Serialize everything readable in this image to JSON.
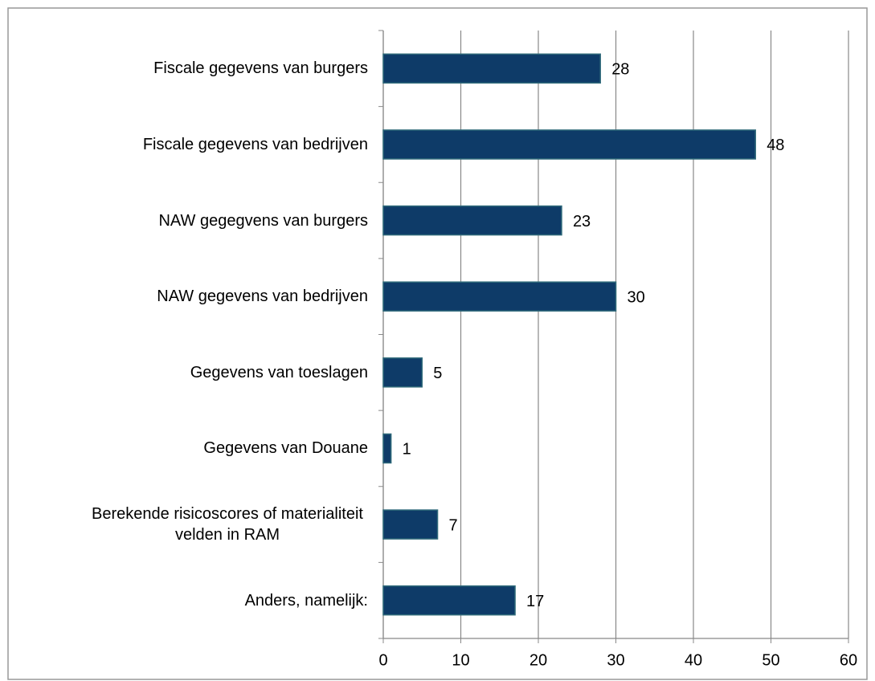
{
  "chart_data": {
    "type": "barh",
    "categories": [
      "Fiscale gegevens van burgers",
      "Fiscale gegevens van bedrijven",
      "NAW gegegvens van burgers",
      "NAW gegevens van bedrijven",
      "Gegevens van toeslagen",
      "Gegevens van Douane",
      "Berekende risicoscores of materialiteit velden in RAM",
      "Anders, namelijk:"
    ],
    "values": [
      28,
      48,
      23,
      30,
      5,
      1,
      7,
      17
    ],
    "color": "#0e3b68",
    "xlim": [
      0,
      60
    ],
    "xticks": [
      0,
      10,
      20,
      30,
      40,
      50,
      60
    ],
    "grid": true
  }
}
